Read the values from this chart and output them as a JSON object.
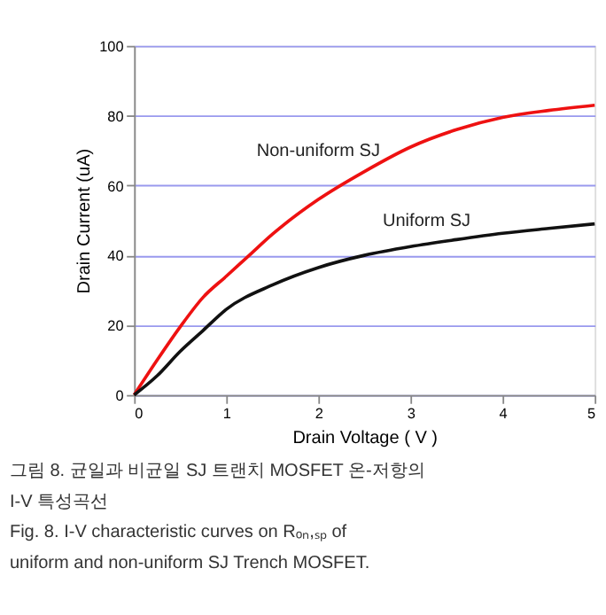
{
  "chart_data": {
    "type": "line",
    "xlabel": "Drain Voltage ( V )",
    "ylabel": "Drain Current (uA)",
    "xlim": [
      0,
      5
    ],
    "xticks": [
      0,
      1,
      2,
      3,
      4,
      5
    ],
    "ylim": [
      0,
      100
    ],
    "yticks": [
      0,
      20,
      40,
      60,
      80,
      100
    ],
    "grid": "y",
    "legend": false,
    "marker": "none",
    "line_style": "solid",
    "series": [
      {
        "name": "Non-uniform SJ",
        "color": "#ee1111",
        "x": [
          0,
          0.25,
          0.5,
          0.75,
          1,
          1.25,
          1.5,
          2,
          2.5,
          3,
          3.5,
          4,
          4.5,
          5
        ],
        "values": [
          0,
          10,
          19.5,
          28,
          34,
          40,
          46,
          56,
          64,
          71,
          76,
          79.5,
          81.5,
          83
        ]
      },
      {
        "name": "Uniform SJ",
        "color": "#111111",
        "x": [
          0,
          0.25,
          0.5,
          0.75,
          1,
          1.5,
          2,
          2.5,
          3,
          3.5,
          4,
          4.5,
          5
        ],
        "values": [
          0,
          5.5,
          12.5,
          18.5,
          24.5,
          31.5,
          36.5,
          40,
          42.5,
          44.5,
          46.3,
          47.7,
          49
        ]
      }
    ],
    "annotations": [
      "그림 8.  균일과 비균일 SJ 트랜치 MOSFET 온-저항의 I-V 특성곡선",
      "Fig.  8.  I-V characteristic curves on Rₒₙ,ₛₚ of uniform and non-uniform SJ Trench MOSFET."
    ]
  }
}
